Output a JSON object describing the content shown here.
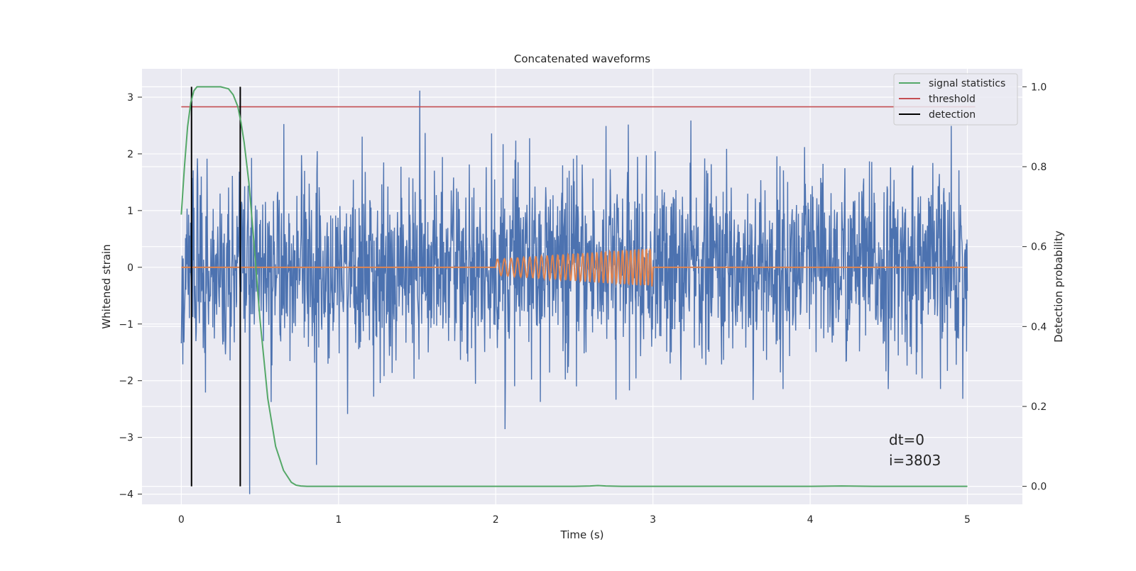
{
  "chart_data": {
    "type": "line",
    "title": "Concatenated waveforms",
    "xlabel": "Time (s)",
    "ylabel": "Whitened strain",
    "y2label": "Detection probability",
    "xlim": [
      -0.25,
      5.35
    ],
    "ylim": [
      -4.18,
      3.5
    ],
    "y2lim": [
      -0.045,
      1.045
    ],
    "xticks": [
      0,
      1,
      2,
      3,
      4,
      5
    ],
    "yticks": [
      -4,
      -3,
      -2,
      -1,
      0,
      1,
      2,
      3
    ],
    "y2ticks": [
      0.0,
      0.2,
      0.4,
      0.6,
      0.8,
      1.0
    ],
    "xtick_labels": [
      "0",
      "1",
      "2",
      "3",
      "4",
      "5"
    ],
    "ytick_labels": [
      "−4",
      "−3",
      "−2",
      "−1",
      "0",
      "1",
      "2",
      "3"
    ],
    "y2tick_labels": [
      "0.0",
      "0.2",
      "0.4",
      "0.6",
      "0.8",
      "1.0"
    ],
    "grid": true,
    "legend_position": "top-right",
    "legend": [
      "signal statistics",
      "threshold",
      "detection"
    ],
    "annotations": [
      "dt=0",
      "i=3803"
    ],
    "colors": {
      "background": "#eaeaf2",
      "grid": "#ffffff",
      "noise": "#4c72b0",
      "injection": "#dd8452",
      "signal_statistics": "#55a868",
      "threshold": "#c44e52",
      "detection": "#000000"
    },
    "noise": {
      "x_range": [
        0,
        5
      ],
      "samples": 2048,
      "std": 0.82,
      "max": 3.18,
      "min": -4.0
    },
    "injection": {
      "start": 2.0,
      "end": 3.0,
      "amp_start": 0.14,
      "amp_end": 0.34,
      "freq_start": 22,
      "freq_end": 42
    },
    "series": [
      {
        "name": "signal statistics",
        "axis": "right",
        "x": [
          0.0,
          0.02,
          0.04,
          0.06,
          0.08,
          0.1,
          0.12,
          0.15,
          0.2,
          0.25,
          0.3,
          0.33,
          0.36,
          0.38,
          0.4,
          0.43,
          0.46,
          0.5,
          0.55,
          0.6,
          0.65,
          0.7,
          0.73,
          0.76,
          0.8,
          1.0,
          1.5,
          2.0,
          2.5,
          2.6,
          2.65,
          2.7,
          2.8,
          3.0,
          3.5,
          4.0,
          4.2,
          4.4,
          5.0
        ],
        "y": [
          0.68,
          0.8,
          0.9,
          0.96,
          0.99,
          1.0,
          1.0,
          1.0,
          1.0,
          1.0,
          0.995,
          0.98,
          0.95,
          0.91,
          0.86,
          0.76,
          0.62,
          0.42,
          0.22,
          0.1,
          0.04,
          0.01,
          0.003,
          0.001,
          0.0,
          0.0,
          0.0,
          0.0,
          0.0,
          0.001,
          0.002,
          0.001,
          0.0,
          0.0,
          0.0,
          0.0,
          0.001,
          0.0,
          0.0
        ]
      },
      {
        "name": "threshold",
        "axis": "right",
        "x": [
          0,
          5.05
        ],
        "y": [
          0.95,
          0.95
        ]
      },
      {
        "name": "detection",
        "axis": "right",
        "x": [
          0.065,
          0.375
        ],
        "y": [
          0.0,
          1.0
        ]
      }
    ]
  }
}
